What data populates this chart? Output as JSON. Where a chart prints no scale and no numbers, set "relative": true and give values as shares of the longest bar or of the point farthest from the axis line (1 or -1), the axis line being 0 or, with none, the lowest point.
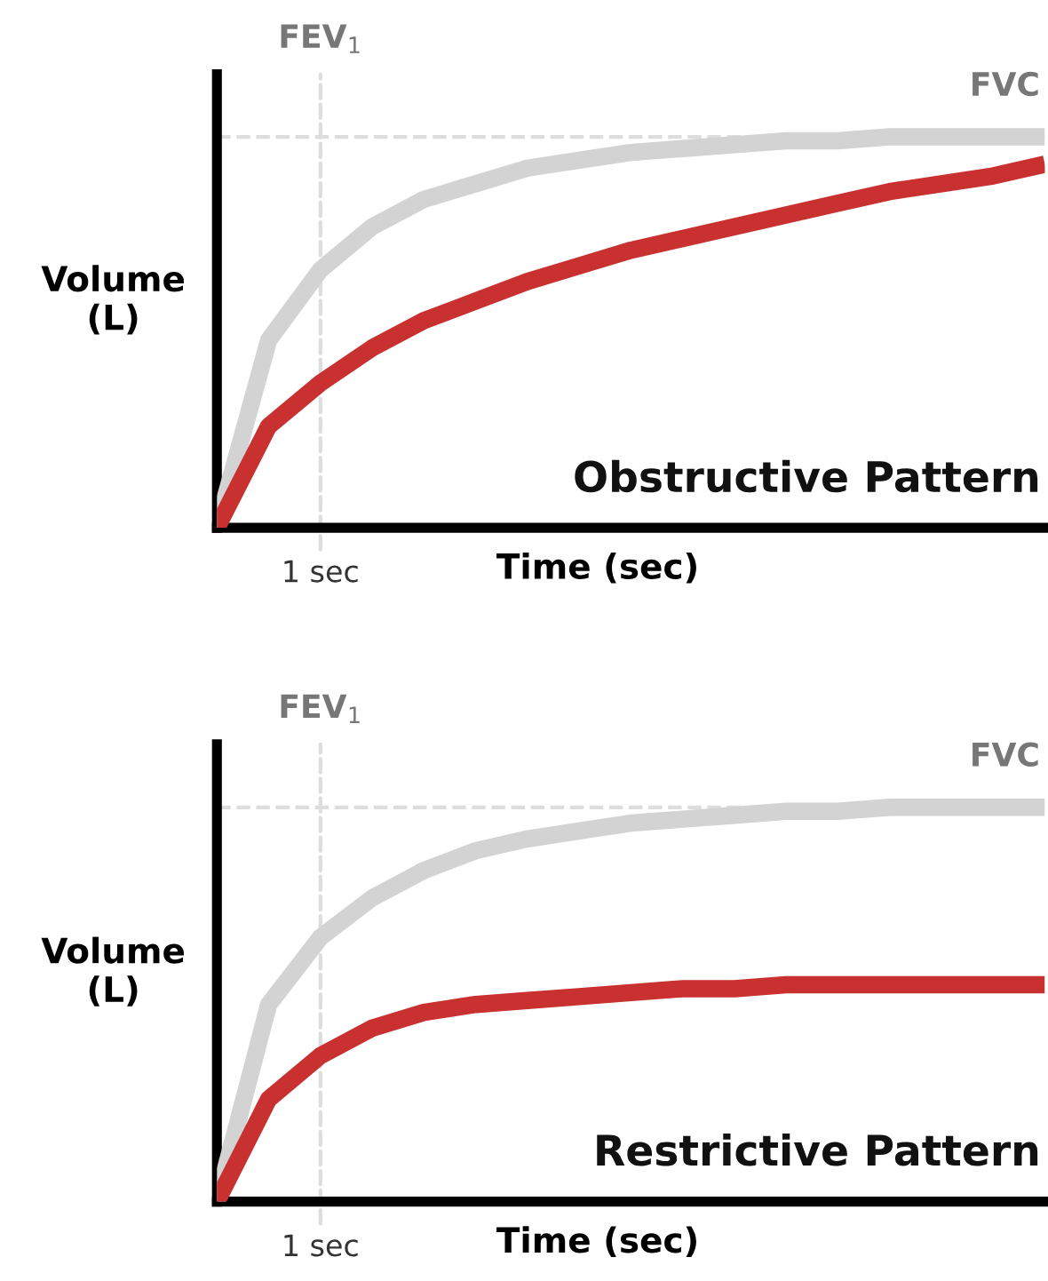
{
  "chart_data": [
    {
      "type": "line",
      "title": "Obstructive Pattern",
      "xlabel": "Time (sec)",
      "ylabel": "Volume\n(L)",
      "relative": true,
      "categories": [
        null,
        null,
        null,
        null,
        null,
        null,
        null,
        null,
        null,
        null,
        null,
        null,
        null,
        null,
        null,
        null,
        null
      ],
      "series": [
        {
          "color": "#d3d3d3",
          "values": [
            0,
            0.48,
            0.66,
            0.77,
            0.84,
            0.88,
            0.92,
            0.94,
            0.96,
            0.97,
            0.98,
            0.99,
            0.99,
            1,
            1,
            1,
            1
          ]
        },
        {
          "color": "#c8312f",
          "values": [
            0,
            0.26,
            0.37,
            0.46,
            0.53,
            0.58,
            0.63,
            0.67,
            0.71,
            0.74,
            0.77,
            0.8,
            0.83,
            0.86,
            0.88,
            0.9,
            0.93
          ]
        }
      ],
      "annotations": [
        "FEV$_{1}$",
        "1 sec"
      ],
      "ref_lines": [
        {
          "axis": "y",
          "value": 1,
          "label": "FVC",
          "color": "#dddddd",
          "line_style": "dashed"
        }
      ],
      "marker": "none",
      "line_style": "solid"
    },
    {
      "type": "line",
      "title": "Restrictive Pattern",
      "xlabel": "Time (sec)",
      "ylabel": "Volume\n(L)",
      "relative": true,
      "categories": [
        null,
        null,
        null,
        null,
        null,
        null,
        null,
        null,
        null,
        null,
        null,
        null,
        null,
        null,
        null,
        null,
        null
      ],
      "series": [
        {
          "color": "#d3d3d3",
          "values": [
            0,
            0.5,
            0.67,
            0.77,
            0.84,
            0.89,
            0.92,
            0.94,
            0.96,
            0.97,
            0.98,
            0.99,
            0.99,
            1,
            1,
            1,
            1
          ]
        },
        {
          "color": "#c8312f",
          "values": [
            0,
            0.26,
            0.37,
            0.44,
            0.48,
            0.5,
            0.51,
            0.52,
            0.53,
            0.54,
            0.54,
            0.55,
            0.55,
            0.55,
            0.55,
            0.55,
            0.55
          ]
        }
      ],
      "annotations": [
        "FEV$_{1}$",
        "1 sec"
      ],
      "ref_lines": [
        {
          "axis": "y",
          "value": 1,
          "label": "FVC",
          "color": "#dddddd",
          "line_style": "dashed"
        }
      ],
      "marker": "none",
      "line_style": "solid"
    }
  ]
}
